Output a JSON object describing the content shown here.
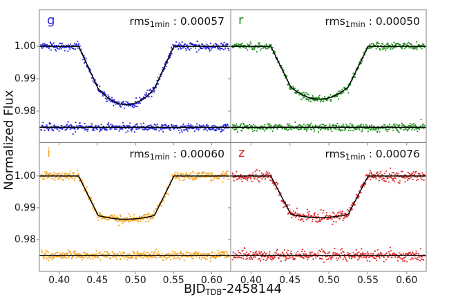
{
  "figure": {
    "ylabel": "Normalized Flux",
    "xlabel_main": "BJD",
    "xlabel_sub": "TDB",
    "xlabel_rest": "-2458144",
    "rms_prefix": "rms",
    "rms_sub": "1min",
    "rms_sep": " : "
  },
  "chart_data": {
    "type": "scatter",
    "title": "",
    "layout": "2x2 transit light curves with residuals",
    "xlabel": "BJD_TDB - 2458144",
    "ylabel": "Normalized Flux",
    "grid": false,
    "legend": "none",
    "x_ticks": [
      0.4,
      0.45,
      0.5,
      0.55,
      0.6
    ],
    "y_ticks": [
      1.0,
      0.99,
      0.98
    ],
    "xlim": [
      0.374,
      0.625
    ],
    "ylim_top": [
      0.9703,
      1.0113
    ],
    "ylim_bottom": [
      0.97,
      1.0105
    ],
    "residual_offset": 0.975,
    "n_points": 450,
    "transit_model": {
      "t1": 0.4255,
      "t2": 0.451,
      "t3": 0.525,
      "t4": 0.5505,
      "baseline": 1.0
    },
    "panels": [
      {
        "band": "g",
        "rms": "0.00057",
        "color": "#2222dd",
        "depth_contact": 0.013,
        "depth_center": 0.018,
        "scatter_sigma": 0.00062,
        "seed": 11
      },
      {
        "band": "r",
        "rms": "0.00050",
        "color": "#1e8c1e",
        "depth_contact": 0.0125,
        "depth_center": 0.0163,
        "scatter_sigma": 0.00055,
        "seed": 22
      },
      {
        "band": "i",
        "rms": "0.00060",
        "color": "#f7a21a",
        "depth_contact": 0.0124,
        "depth_center": 0.0136,
        "scatter_sigma": 0.00066,
        "seed": 33
      },
      {
        "band": "z",
        "rms": "0.00076",
        "color": "#e02626",
        "depth_contact": 0.012,
        "depth_center": 0.0131,
        "scatter_sigma": 0.00082,
        "seed": 44
      }
    ],
    "colors": {
      "model_line": "#000000",
      "spine": "#808080",
      "tick_text": "#1a1a1a"
    }
  }
}
